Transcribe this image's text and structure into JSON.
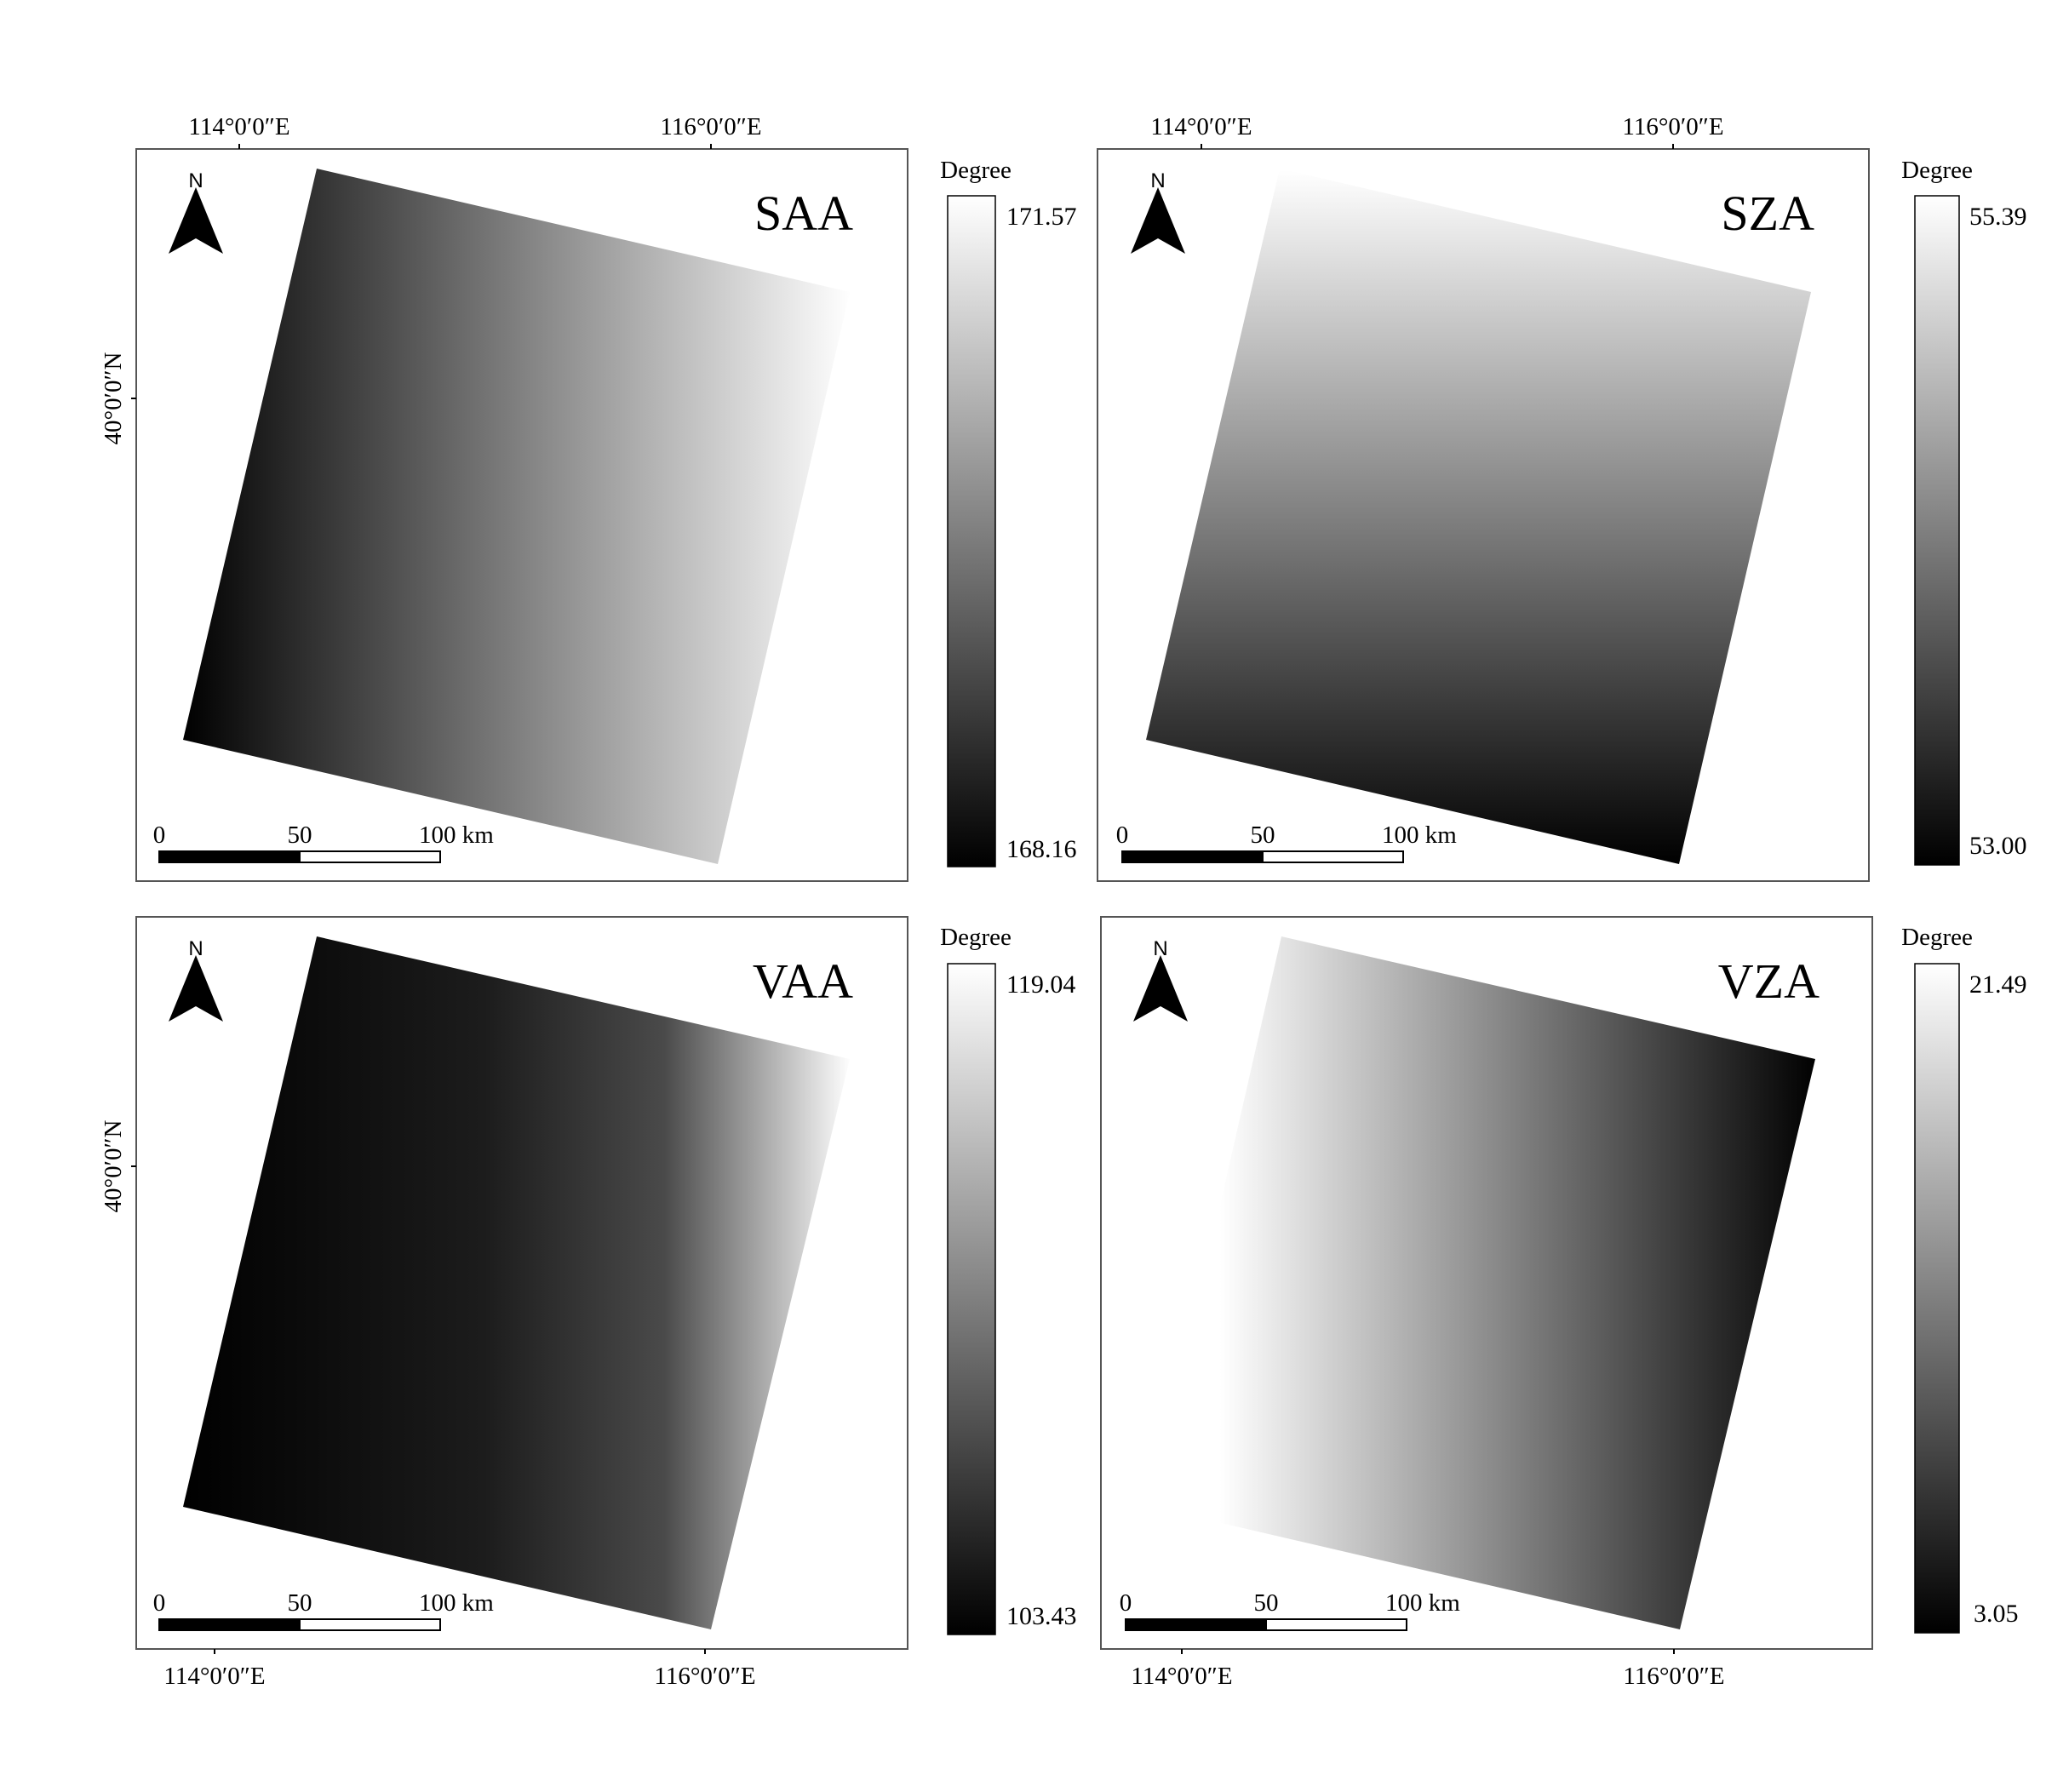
{
  "panels": [
    {
      "title": "SAA",
      "legend_title": "Degree",
      "legend_max": "171.57",
      "legend_min": "168.16",
      "top_lon_labels": [
        "114°0′0″E",
        "116°0′0″E"
      ],
      "bottom_lon_labels": [],
      "lat_label": "40°0′0″N",
      "scalebar": {
        "labels": [
          "0",
          "50",
          "100 km"
        ]
      },
      "north_arrow": {
        "letter": "N",
        "icon": "north-arrow-icon"
      },
      "gradient": {
        "direction": "left-to-right",
        "start": "#000000",
        "end": "#ffffff"
      }
    },
    {
      "title": "SZA",
      "legend_title": "Degree",
      "legend_max": "55.39",
      "legend_min": "53.00",
      "top_lon_labels": [
        "114°0′0″E",
        "116°0′0″E"
      ],
      "bottom_lon_labels": [],
      "lat_label": "",
      "scalebar": {
        "labels": [
          "0",
          "50",
          "100 km"
        ]
      },
      "north_arrow": {
        "letter": "N",
        "icon": "north-arrow-icon"
      },
      "gradient": {
        "direction": "top-to-bottom",
        "start": "#ffffff",
        "end": "#000000"
      }
    },
    {
      "title": "VAA",
      "legend_title": "Degree",
      "legend_max": "119.04",
      "legend_min": "103.43",
      "top_lon_labels": [],
      "bottom_lon_labels": [
        "114°0′0″E",
        "116°0′0″E"
      ],
      "lat_label": "40°0′0″N",
      "scalebar": {
        "labels": [
          "0",
          "50",
          "100 km"
        ]
      },
      "north_arrow": {
        "letter": "N",
        "icon": "north-arrow-icon"
      },
      "gradient": {
        "direction": "left-to-right",
        "start": "#000000",
        "end": "#ffffff"
      }
    },
    {
      "title": "VZA",
      "legend_title": "Degree",
      "legend_max": "21.49",
      "legend_min": "3.05",
      "top_lon_labels": [],
      "bottom_lon_labels": [
        "114°0′0″E",
        "116°0′0″E"
      ],
      "lat_label": "",
      "scalebar": {
        "labels": [
          "0",
          "50",
          "100 km"
        ]
      },
      "north_arrow": {
        "letter": "N",
        "icon": "north-arrow-icon"
      },
      "gradient": {
        "direction": "left-to-right",
        "start": "#ffffff",
        "end": "#000000"
      }
    }
  ]
}
